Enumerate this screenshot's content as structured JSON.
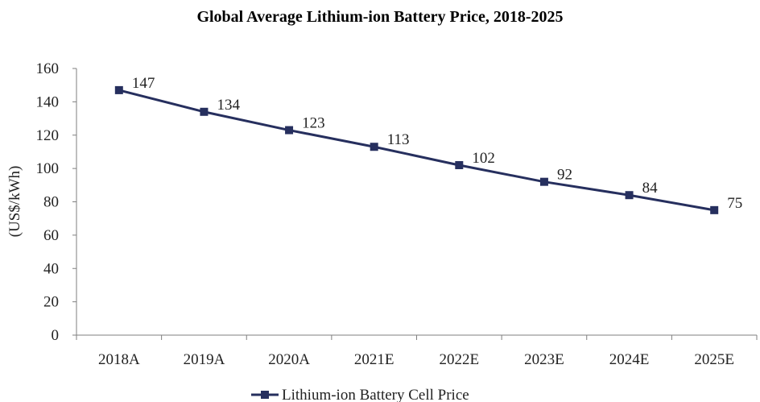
{
  "chart_data": {
    "type": "line",
    "title": "Global Average Lithium-ion Battery Price, 2018-2025",
    "xlabel": "",
    "ylabel": "(US$/kWh)",
    "categories": [
      "2018A",
      "2019A",
      "2020A",
      "2021E",
      "2022E",
      "2023E",
      "2024E",
      "2025E"
    ],
    "series": [
      {
        "name": "Lithium-ion Battery Cell Price",
        "values": [
          147,
          134,
          123,
          113,
          102,
          92,
          84,
          75
        ],
        "data_labels": [
          "147",
          "134",
          "123",
          "113",
          "102",
          "92",
          "84",
          "75"
        ],
        "color": "#262F5E",
        "marker": "square"
      }
    ],
    "ylim": [
      0,
      160
    ],
    "yticks": [
      0,
      20,
      40,
      60,
      80,
      100,
      120,
      140,
      160
    ],
    "ytick_labels": [
      "0",
      "20",
      "40",
      "60",
      "80",
      "100",
      "120",
      "140",
      "160"
    ],
    "grid": false,
    "legend_position": "bottom-center"
  }
}
